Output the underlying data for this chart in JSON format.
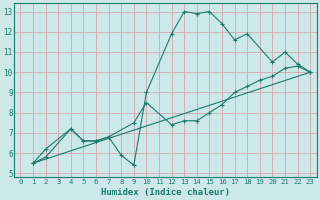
{
  "xlabel": "Humidex (Indice chaleur)",
  "bg_color": "#cde8e8",
  "grid_color": "#d4a8b0",
  "line_color": "#1a7a6e",
  "xlim": [
    -0.5,
    23.5
  ],
  "ylim": [
    4.8,
    13.4
  ],
  "xticks": [
    0,
    1,
    2,
    3,
    4,
    5,
    6,
    7,
    8,
    9,
    10,
    11,
    12,
    13,
    14,
    15,
    16,
    17,
    18,
    19,
    20,
    21,
    22,
    23
  ],
  "yticks": [
    5,
    6,
    7,
    8,
    9,
    10,
    11,
    12,
    13
  ],
  "line1_x": [
    1,
    2,
    4,
    5,
    6,
    7,
    8,
    9,
    10,
    12,
    13,
    14,
    15,
    16,
    17,
    18,
    20,
    21,
    22,
    23
  ],
  "line1_y": [
    5.5,
    6.2,
    7.2,
    6.6,
    6.6,
    6.8,
    5.9,
    5.4,
    9.0,
    11.9,
    13.0,
    12.9,
    13.0,
    12.4,
    11.6,
    11.9,
    10.5,
    11.0,
    10.4,
    10.0
  ],
  "line2_x": [
    1,
    2,
    4,
    5,
    6,
    7,
    9,
    10,
    12,
    13,
    14,
    15,
    16,
    17,
    18,
    19,
    20,
    21,
    22,
    23
  ],
  "line2_y": [
    5.5,
    5.8,
    7.2,
    6.6,
    6.6,
    6.8,
    7.5,
    8.5,
    7.4,
    7.6,
    7.6,
    8.0,
    8.4,
    9.0,
    9.3,
    9.6,
    9.8,
    10.2,
    10.3,
    10.0
  ],
  "line3_x": [
    1,
    23
  ],
  "line3_y": [
    5.5,
    10.0
  ]
}
